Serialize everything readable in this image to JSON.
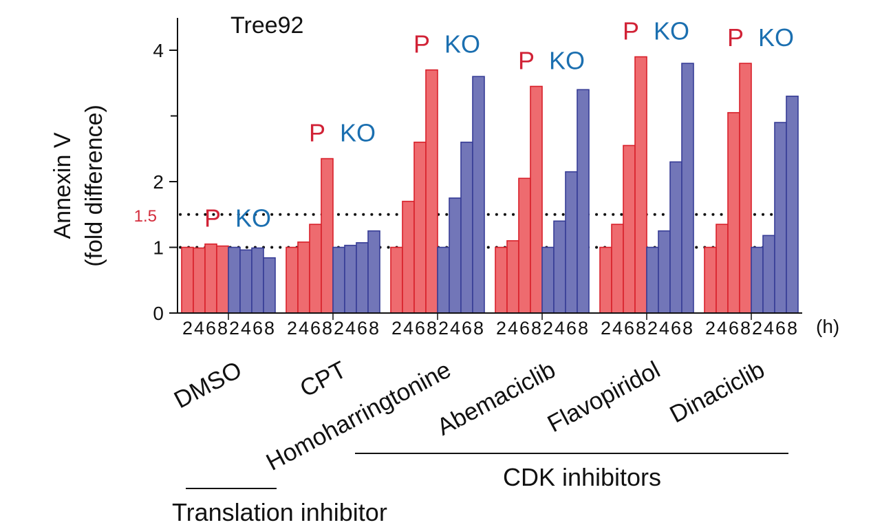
{
  "chart_data": {
    "type": "bar",
    "title": "Tree92",
    "ylabel_line1": "Annexin V",
    "ylabel_line2": "(fold difference)",
    "xunit": "(h)",
    "ylim": [
      0,
      4.5
    ],
    "yticks": [
      0,
      1,
      2,
      4
    ],
    "ytick_labels": [
      "0",
      "1",
      "2",
      "4"
    ],
    "minor_ticks": [
      3
    ],
    "reference_lines": [
      {
        "value": 1.5,
        "label": "1.5",
        "style": "dotted",
        "label_color": "#d42c3c"
      },
      {
        "value": 1,
        "label": "",
        "style": "dotted",
        "label_color": ""
      }
    ],
    "timepoints": [
      "2",
      "4",
      "6",
      "8"
    ],
    "series_labels": {
      "P": "P",
      "KO": "KO"
    },
    "colors": {
      "P_fill": "#ee6b6f",
      "P_edge": "#d8202a",
      "P_text": "#d12236",
      "KO_fill": "#7276b8",
      "KO_edge": "#363c96",
      "KO_text": "#1b6fb0"
    },
    "groups": [
      {
        "name": "DMSO",
        "P": [
          1.0,
          0.99,
          1.05,
          1.02
        ],
        "KO": [
          1.0,
          0.96,
          0.99,
          0.84
        ]
      },
      {
        "name": "CPT",
        "P": [
          1.0,
          1.08,
          1.35,
          2.35
        ],
        "KO": [
          1.0,
          1.03,
          1.07,
          1.25
        ]
      },
      {
        "name": "Homoharringtonine",
        "P": [
          1.0,
          1.7,
          2.6,
          3.7
        ],
        "KO": [
          1.0,
          1.75,
          2.6,
          3.6
        ]
      },
      {
        "name": "Abemaciclib",
        "P": [
          1.0,
          1.1,
          2.05,
          3.45
        ],
        "KO": [
          1.0,
          1.4,
          2.15,
          3.4
        ]
      },
      {
        "name": "Flavopiridol",
        "P": [
          1.0,
          1.35,
          2.55,
          3.9
        ],
        "KO": [
          1.0,
          1.25,
          2.3,
          3.8
        ]
      },
      {
        "name": "Dinaciclib",
        "P": [
          1.0,
          1.35,
          3.05,
          3.8
        ],
        "KO": [
          1.0,
          1.18,
          2.9,
          3.3
        ]
      }
    ],
    "brackets": [
      {
        "label": "Translation inhibitor"
      },
      {
        "label": "CDK inhibitors"
      }
    ]
  }
}
